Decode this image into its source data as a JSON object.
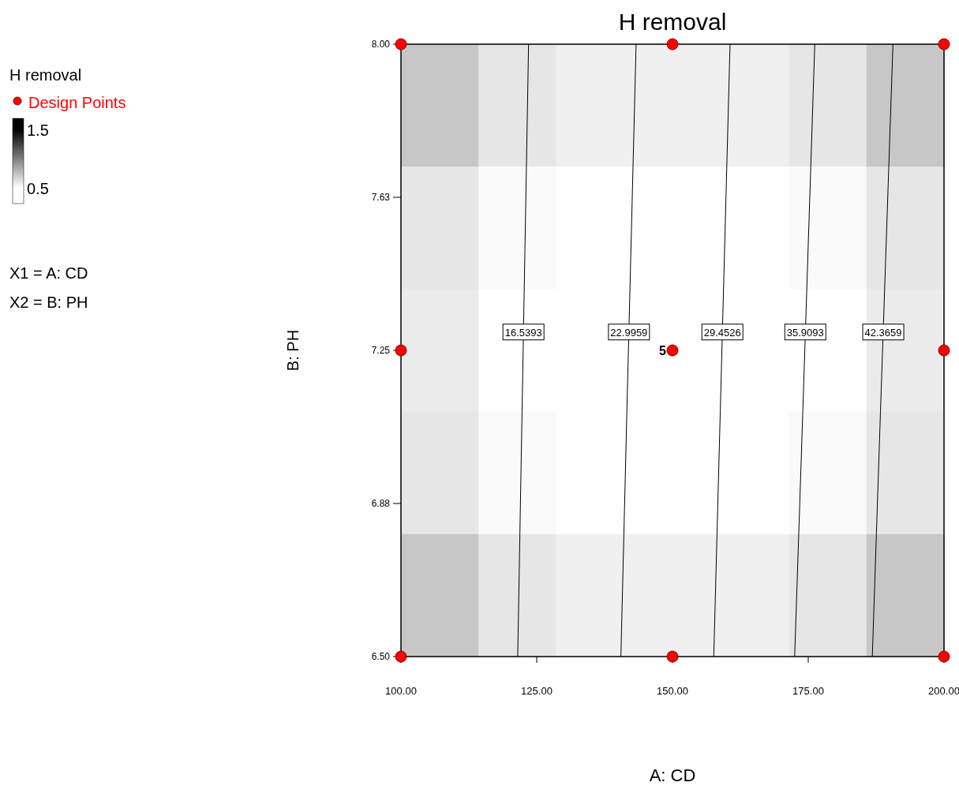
{
  "chart_data": [
    {
      "type": "heatmap",
      "categories": [
        null,
        null,
        null,
        null,
        null,
        null,
        null
      ],
      "y_categories": [
        null,
        null,
        null,
        null,
        null
      ],
      "clim": [
        0.5,
        1.5
      ],
      "cticks": [
        1.5,
        0.5
      ],
      "cells": [
        [
          0.72,
          0.6,
          0.56,
          0.56,
          0.56,
          0.6,
          0.72
        ],
        [
          0.6,
          0.52,
          0.5,
          0.5,
          0.5,
          0.52,
          0.6
        ],
        [
          0.58,
          0.5,
          0.5,
          0.5,
          0.5,
          0.5,
          0.58
        ],
        [
          0.6,
          0.52,
          0.5,
          0.5,
          0.5,
          0.52,
          0.6
        ],
        [
          0.72,
          0.6,
          0.56,
          0.56,
          0.56,
          0.6,
          0.72
        ]
      ]
    },
    {
      "type": "scatter",
      "title": "H removal",
      "xlabel": "A: CD",
      "ylabel": "B: PH",
      "legend_title": "H removal",
      "legend": "left",
      "annotations": [
        {
          "text": "5",
          "x": 150,
          "y": 7.25
        },
        "X1 = A: CD",
        "X2 = B: PH"
      ],
      "xlim": [
        100,
        200
      ],
      "ylim": [
        6.5,
        8.0
      ],
      "xticks": [
        {
          "value": 100,
          "label": "100.00"
        },
        {
          "value": 125,
          "label": "125.00"
        },
        {
          "value": 150,
          "label": "150.00"
        },
        {
          "value": 175,
          "label": "175.00"
        },
        {
          "value": 200,
          "label": "200.00"
        }
      ],
      "yticks": [
        {
          "value": 6.5,
          "label": "6.50"
        },
        {
          "value": 6.875,
          "label": "6.88"
        },
        {
          "value": 7.25,
          "label": "7.25"
        },
        {
          "value": 7.625,
          "label": "7.63"
        },
        {
          "value": 8.0,
          "label": "8.00"
        }
      ],
      "series": [
        {
          "name": "16.5393",
          "type": "line",
          "marker": "none",
          "color": "#000000",
          "x": [
            121.5,
            122.3,
            123.5
          ],
          "values": [
            6.5,
            7.1,
            8.0
          ]
        },
        {
          "name": "22.9959",
          "type": "line",
          "marker": "none",
          "color": "#000000",
          "x": [
            140.5,
            141.6,
            143.3
          ],
          "values": [
            6.5,
            7.1,
            8.0
          ]
        },
        {
          "name": "29.4526",
          "type": "line",
          "marker": "none",
          "color": "#000000",
          "x": [
            157.6,
            158.8,
            160.6
          ],
          "values": [
            6.5,
            7.1,
            8.0
          ]
        },
        {
          "name": "35.9093",
          "type": "line",
          "marker": "none",
          "color": "#000000",
          "x": [
            172.5,
            174.0,
            176.2
          ],
          "values": [
            6.5,
            7.1,
            8.0
          ]
        },
        {
          "name": "42.3659",
          "type": "line",
          "marker": "none",
          "color": "#000000",
          "x": [
            186.8,
            188.3,
            190.6
          ],
          "values": [
            6.5,
            7.1,
            8.0
          ]
        },
        {
          "name": "Design Points",
          "marker": "circle",
          "color": "#ff0000",
          "x": [
            100,
            150,
            200,
            100,
            150,
            200,
            100,
            150,
            200
          ],
          "values": [
            8,
            8,
            8,
            7.25,
            7.25,
            7.25,
            6.5,
            6.5,
            6.5
          ]
        }
      ]
    }
  ]
}
